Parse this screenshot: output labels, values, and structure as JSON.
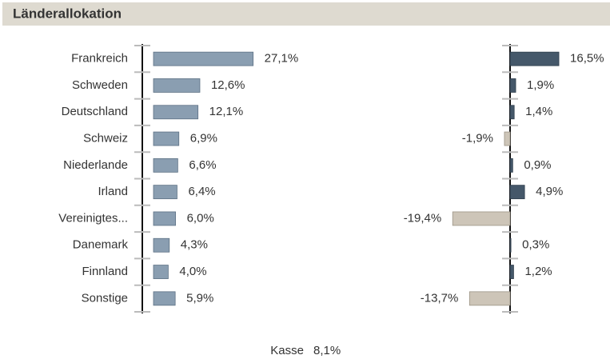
{
  "chart_data": [
    {
      "type": "bar",
      "title": "Länderallokation",
      "categories": [
        "Frankreich",
        "Schweden",
        "Deutschland",
        "Schweiz",
        "Niederlande",
        "Irland",
        "Vereinigtes...",
        "Danemark",
        "Finnland",
        "Sonstige"
      ],
      "values": [
        27.1,
        12.6,
        12.1,
        6.9,
        6.6,
        6.4,
        6.0,
        4.3,
        4.0,
        5.9
      ],
      "value_labels": [
        "27,1%",
        "12,6%",
        "12,1%",
        "6,9%",
        "6,6%",
        "6,4%",
        "6,0%",
        "4,3%",
        "4,0%",
        "5,9%"
      ],
      "color": "#8a9eb1"
    },
    {
      "type": "bar",
      "values": [
        16.5,
        1.9,
        1.4,
        -1.9,
        0.9,
        4.9,
        -19.4,
        0.3,
        1.2,
        -13.7
      ],
      "value_labels": [
        "16,5%",
        "1,9%",
        "1,4%",
        "-1,9%",
        "0,9%",
        "4,9%",
        "-19,4%",
        "0,3%",
        "1,2%",
        "-13,7%"
      ],
      "color_positive": "#45586a",
      "color_negative": "#cdc5b8"
    }
  ],
  "footer": {
    "label": "Kasse",
    "value_label": "8,1%"
  }
}
